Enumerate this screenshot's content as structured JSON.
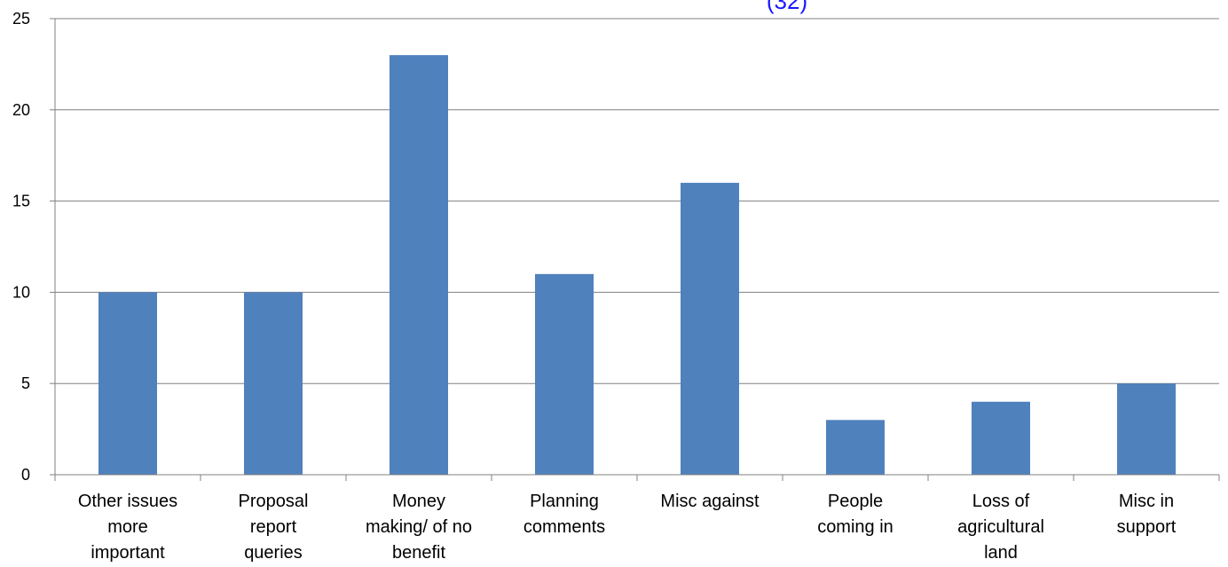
{
  "chart_data": {
    "type": "bar",
    "title_fragment": "(32)",
    "categories": [
      [
        "Other issues",
        "more",
        "important"
      ],
      [
        "Proposal",
        "report",
        "queries"
      ],
      [
        "Money",
        "making/ of no",
        "benefit"
      ],
      [
        "Planning",
        "comments"
      ],
      [
        "Misc against"
      ],
      [
        "People",
        "coming in"
      ],
      [
        "Loss of",
        "agricultural",
        "land"
      ],
      [
        "Misc in",
        "support"
      ]
    ],
    "values": [
      10,
      10,
      23,
      11,
      16,
      3,
      4,
      5
    ],
    "ylim": [
      0,
      25
    ],
    "yticks": [
      "0",
      "5",
      "10",
      "15",
      "20",
      "25"
    ],
    "grid": true,
    "colors": {
      "bar": "#4f81bd",
      "title": "#1a1aff",
      "grid": "#808080",
      "axis": "#808080"
    }
  }
}
